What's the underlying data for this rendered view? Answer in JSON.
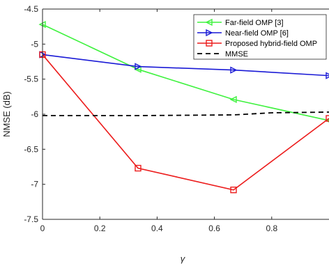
{
  "chart_data": {
    "type": "line",
    "xlabel": "γ",
    "ylabel": "NMSE (dB)",
    "xlim": [
      0,
      1
    ],
    "ylim": [
      -7.5,
      -4.5
    ],
    "xticks": [
      "0",
      "0.2",
      "0.4",
      "0.6",
      "0.8"
    ],
    "xtick_values": [
      0,
      0.2,
      0.4,
      0.6,
      0.8
    ],
    "yticks": [
      "-4.5",
      "-5",
      "-5.5",
      "-6",
      "-6.5",
      "-7",
      "-7.5"
    ],
    "ytick_values": [
      -4.5,
      -5,
      -5.5,
      -6,
      -6.5,
      -7,
      -7.5
    ],
    "grid": false,
    "legend_position": "top-right",
    "series": [
      {
        "name": "Far-field OMP [3]",
        "color": "#3ff23f",
        "marker": "triangle-left",
        "dashed": false,
        "x": [
          0,
          0.3333,
          0.6667,
          1
        ],
        "y": [
          -4.72,
          -5.36,
          -5.79,
          -6.09
        ]
      },
      {
        "name": "Near-field OMP [6]",
        "color": "#1a1ad6",
        "marker": "triangle-right",
        "dashed": false,
        "x": [
          0,
          0.3333,
          0.6667,
          1
        ],
        "y": [
          -5.15,
          -5.32,
          -5.37,
          -5.45
        ]
      },
      {
        "name": "Proposed hybrid-field OMP",
        "color": "#ec1c1c",
        "marker": "square",
        "dashed": false,
        "x": [
          0,
          0.3333,
          0.6667,
          1
        ],
        "y": [
          -5.15,
          -6.77,
          -7.08,
          -6.06
        ]
      },
      {
        "name": "MMSE",
        "color": "#000000",
        "marker": "none",
        "dashed": true,
        "x": [
          0,
          0.3333,
          0.6667,
          0.8,
          1
        ],
        "y": [
          -6.02,
          -6.02,
          -6.01,
          -5.98,
          -5.97
        ]
      }
    ]
  }
}
